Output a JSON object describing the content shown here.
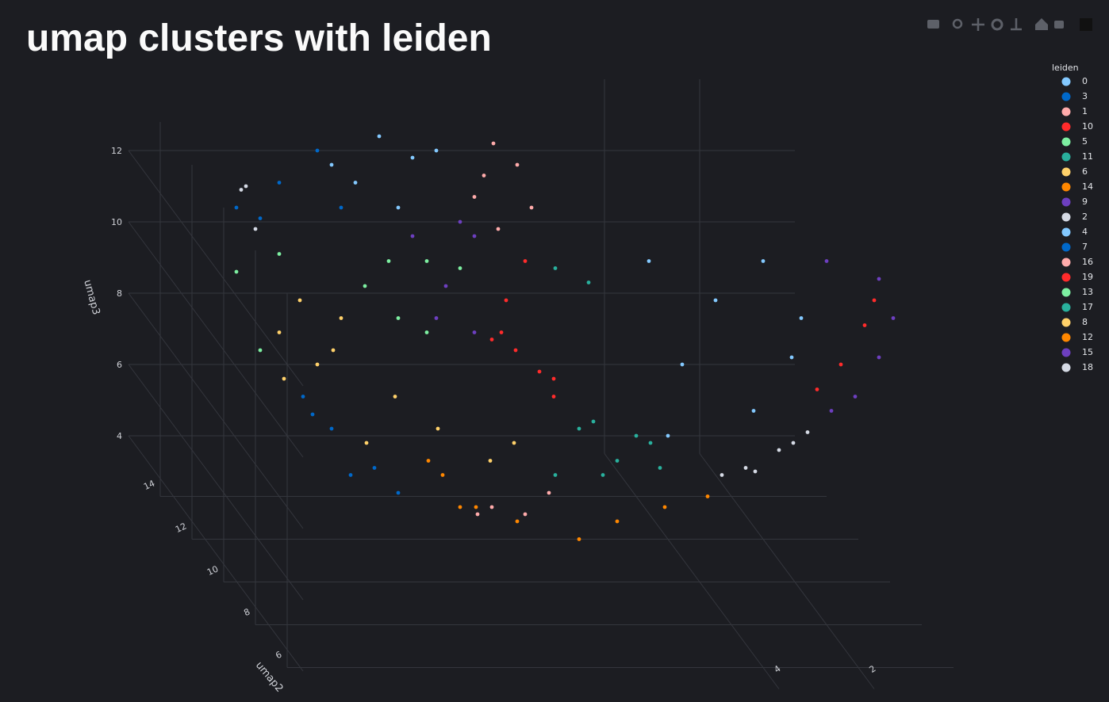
{
  "chart_data": {
    "type": "scatter3d",
    "title": "umap clusters with leiden",
    "legend_title": "leiden",
    "y_label": "umap2",
    "z_label": "umap3",
    "xlim": [
      0,
      14
    ],
    "ylim": [
      5,
      16
    ],
    "zlim": [
      3.5,
      14
    ],
    "xticks": [
      2,
      4
    ],
    "yticks": [
      6,
      8,
      10,
      12,
      14
    ],
    "zticks": [
      4,
      6,
      8,
      10,
      12
    ],
    "grid": true,
    "legend": "right",
    "series": [
      {
        "name": "0",
        "color": "#83c9ff",
        "x": [
          9.4,
          8.7,
          9.9,
          8.2,
          9.0,
          10.4
        ],
        "y": [
          14,
          14,
          14,
          14,
          14,
          14
        ],
        "z": [
          13.6,
          13.0,
          12.3,
          13.2,
          11.6,
          12.8
        ]
      },
      {
        "name": "3",
        "color": "#0068c9",
        "x": [
          10.7,
          11.5,
          10.2,
          9.5,
          9.0,
          10.4,
          11.0
        ],
        "y": [
          14,
          14,
          14,
          14,
          14,
          14,
          14
        ],
        "z": [
          13.2,
          12.3,
          11.6,
          4.3,
          3.6,
          5.4,
          6.3
        ]
      },
      {
        "name": "1",
        "color": "#ffabab",
        "x": [
          7.0,
          6.5,
          7.4,
          6.2,
          6.9,
          7.2
        ],
        "y": [
          14,
          14,
          14,
          14,
          14,
          14
        ],
        "z": [
          13.4,
          12.8,
          11.9,
          11.6,
          11.0,
          12.5
        ]
      },
      {
        "name": "10",
        "color": "#ff2b2b",
        "x": [
          7.0,
          7.4,
          7.7,
          6.7,
          6.4,
          1.0,
          1.2,
          1.7,
          2.2
        ],
        "y": [
          12,
          12,
          12,
          12,
          12,
          8,
          8,
          8,
          8
        ],
        "z": [
          11.3,
          10.2,
          9.1,
          8.2,
          7.5,
          12.6,
          11.9,
          10.8,
          10.1
        ]
      },
      {
        "name": "5",
        "color": "#7defa1",
        "x": [
          12.4,
          11.5,
          9.7,
          9.0,
          11.9,
          8.4
        ],
        "y": [
          14,
          14,
          14,
          14,
          14,
          14
        ],
        "z": [
          9.8,
          10.3,
          9.4,
          8.5,
          7.6,
          10.1
        ]
      },
      {
        "name": "11",
        "color": "#29b09d",
        "x": [
          6.7,
          6.0,
          6.2,
          5.4,
          4.7,
          6.7
        ],
        "y": [
          11,
          11,
          11,
          11,
          11,
          11
        ],
        "z": [
          11.7,
          11.3,
          7.2,
          6.3,
          6.8,
          5.9
        ]
      },
      {
        "name": "6",
        "color": "#ffd16a",
        "x": [
          11.4,
          10.7,
          9.4,
          8.5,
          7.4,
          6.9,
          10.0
        ],
        "y": [
          13,
          13,
          13,
          13,
          13,
          13,
          13
        ],
        "z": [
          9.6,
          8.2,
          6.9,
          6.0,
          5.1,
          5.6,
          5.6
        ]
      },
      {
        "name": "14",
        "color": "#ff8700",
        "x": [
          8.7,
          7.5,
          6.2,
          5.4,
          4.4,
          3.5
        ],
        "y": [
          11,
          11,
          11,
          11,
          11,
          11
        ],
        "z": [
          5.0,
          4.6,
          4.1,
          4.6,
          5.0,
          5.3
        ]
      },
      {
        "name": "9",
        "color": "#6d3fc0",
        "x": [
          8.7,
          8.0,
          7.4,
          8.2,
          0.9,
          0.6,
          0.9,
          1.4,
          1.9
        ],
        "y": [
          14,
          14,
          14,
          14,
          8,
          8,
          8,
          8,
          8
        ],
        "z": [
          10.8,
          9.4,
          8.1,
          8.5,
          13.2,
          12.1,
          11.0,
          9.9,
          9.5
        ]
      },
      {
        "name": "2",
        "color": "#d5dae5",
        "x": [
          12.3,
          12.0,
          3.7,
          3.0,
          2.4,
          4.2
        ],
        "y": [
          14,
          14,
          8,
          8,
          8,
          8
        ],
        "z": [
          12.1,
          11.0,
          7.9,
          8.4,
          8.9,
          7.7
        ]
      },
      {
        "name": "4",
        "color": "#83c9ff",
        "x": [
          5.4,
          4.0,
          3.0,
          4.7,
          2.4,
          3.2,
          5.0,
          2.2
        ],
        "y": [
          9,
          9,
          9,
          9,
          9,
          9,
          9,
          9
        ],
        "z": [
          13.1,
          12.0,
          13.1,
          10.2,
          10.4,
          8.9,
          8.2,
          11.5
        ]
      },
      {
        "name": "7",
        "color": "#0068c9",
        "x": [
          12.4,
          11.9,
          10.8,
          10.0
        ],
        "y": [
          14,
          14,
          14,
          14
        ],
        "z": [
          11.6,
          11.3,
          5.8,
          4.1
        ]
      },
      {
        "name": "16",
        "color": "#ffabab",
        "x": [
          7.7,
          7.0,
          6.5,
          8.0
        ],
        "y": [
          12,
          12,
          12,
          12
        ],
        "z": [
          4.4,
          4.2,
          4.8,
          4.2
        ]
      },
      {
        "name": "19",
        "color": "#ff2b2b",
        "x": [
          7.5,
          7.2,
          6.4
        ],
        "y": [
          12,
          12,
          12
        ],
        "z": [
          9.3,
          8.8,
          8.0
        ]
      },
      {
        "name": "13",
        "color": "#7defa1",
        "x": [
          9.2,
          7.7,
          8.4
        ],
        "y": [
          14,
          14,
          14
        ],
        "z": [
          10.1,
          9.9,
          8.1
        ]
      },
      {
        "name": "17",
        "color": "#29b09d",
        "x": [
          5.9,
          5.0,
          4.5,
          5.7
        ],
        "y": [
          11,
          11,
          11,
          11
        ],
        "z": [
          7.4,
          7.0,
          6.1,
          5.9
        ]
      },
      {
        "name": "8",
        "color": "#ffd16a",
        "x": [
          11.5,
          10.7,
          10.2,
          11.4
        ],
        "y": [
          14,
          14,
          14,
          14
        ],
        "z": [
          8.1,
          7.2,
          8.5,
          6.8
        ]
      },
      {
        "name": "12",
        "color": "#ff8700",
        "x": [
          8.4,
          7.7,
          8.7
        ],
        "y": [
          13,
          13,
          13
        ],
        "z": [
          4.7,
          3.8,
          5.1
        ]
      },
      {
        "name": "15",
        "color": "#6d3fc0",
        "x": [
          7.7,
          7.4,
          2.0
        ],
        "y": [
          14,
          14,
          8
        ],
        "z": [
          11.2,
          10.8,
          13.7
        ]
      },
      {
        "name": "18",
        "color": "#d5dae5",
        "x": [
          12.2,
          3.5,
          2.7
        ],
        "y": [
          14,
          8,
          8
        ],
        "z": [
          12.2,
          7.8,
          8.6
        ]
      }
    ]
  }
}
